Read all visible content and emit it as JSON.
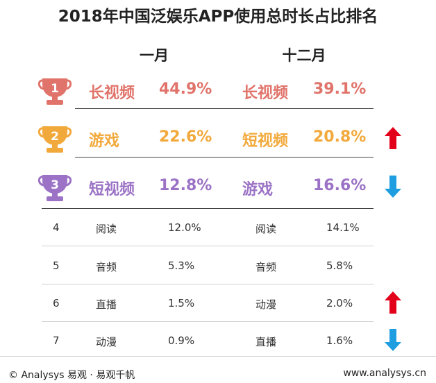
{
  "title": "2018年中国泛娱乐APP使用总时长占比排名",
  "columns": {
    "jan": "一月",
    "dec": "十二月"
  },
  "colors": {
    "rank1": "#e0736a",
    "rank2": "#f2a93b",
    "rank3": "#9b72c5",
    "up": "#e3001b",
    "down": "#1e9ee0"
  },
  "top_rows": [
    {
      "rank": "1",
      "jan_name": "长视频",
      "jan_value": "44.9%",
      "dec_name": "长视频",
      "dec_value": "39.1%",
      "trend": "none"
    },
    {
      "rank": "2",
      "jan_name": "游戏",
      "jan_value": "22.6%",
      "dec_name": "短视频",
      "dec_value": "20.8%",
      "trend": "up"
    },
    {
      "rank": "3",
      "jan_name": "短视频",
      "jan_value": "12.8%",
      "dec_name": "游戏",
      "dec_value": "16.6%",
      "trend": "down"
    }
  ],
  "rows": [
    {
      "rank": "4",
      "jan_name": "阅读",
      "jan_value": "12.0%",
      "dec_name": "阅读",
      "dec_value": "14.1%",
      "trend": "none"
    },
    {
      "rank": "5",
      "jan_name": "音频",
      "jan_value": "5.3%",
      "dec_name": "音频",
      "dec_value": "5.8%",
      "trend": "none"
    },
    {
      "rank": "6",
      "jan_name": "直播",
      "jan_value": "1.5%",
      "dec_name": "动漫",
      "dec_value": "2.0%",
      "trend": "up"
    },
    {
      "rank": "7",
      "jan_name": "动漫",
      "jan_value": "0.9%",
      "dec_name": "直播",
      "dec_value": "1.6%",
      "trend": "down"
    }
  ],
  "chart_data": {
    "type": "table",
    "title": "2018年中国泛娱乐APP使用总时长占比排名",
    "columns": [
      "一月",
      "十二月"
    ],
    "series": [
      {
        "name": "一月",
        "categories": [
          "长视频",
          "游戏",
          "短视频",
          "阅读",
          "音频",
          "直播",
          "动漫"
        ],
        "values": [
          44.9,
          22.6,
          12.8,
          12.0,
          5.3,
          1.5,
          0.9
        ]
      },
      {
        "name": "十二月",
        "categories": [
          "长视频",
          "短视频",
          "游戏",
          "阅读",
          "音频",
          "动漫",
          "直播"
        ],
        "values": [
          39.1,
          20.8,
          16.6,
          14.1,
          5.8,
          2.0,
          1.6
        ]
      }
    ],
    "ranks": [
      1,
      2,
      3,
      4,
      5,
      6,
      7
    ]
  },
  "footer": {
    "left": "© Analysys 易观 · 易观千帆",
    "right": "www.analysys.cn"
  }
}
